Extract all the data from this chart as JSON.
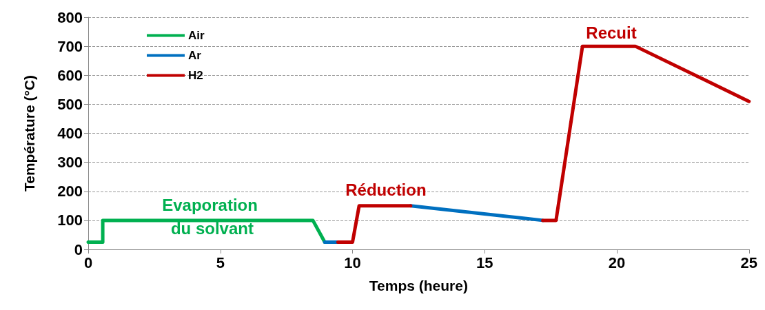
{
  "chart_data": {
    "type": "line",
    "xlabel": "Temps (heure)",
    "ylabel": "Température (°C)",
    "xlim": [
      0,
      25
    ],
    "xticks": [
      0,
      5,
      10,
      15,
      20,
      25
    ],
    "ylim": [
      0,
      800
    ],
    "yticks": [
      0,
      100,
      200,
      300,
      400,
      500,
      600,
      700,
      800
    ],
    "grid": "y",
    "legend": "top left",
    "marker": "none",
    "line_style": "solid",
    "series": [
      {
        "name": "Air",
        "color": "#00b050",
        "x": [
          0,
          0.55,
          0.55,
          8.5,
          8.95
        ],
        "values": [
          25,
          25,
          100,
          100,
          25
        ]
      },
      {
        "name": "Ar",
        "color": "#0070c0",
        "x": [
          8.95,
          9.45,
          null,
          12.2,
          17.2
        ],
        "values": [
          25,
          25,
          null,
          150,
          100
        ]
      },
      {
        "name": "H2",
        "color": "#c00000",
        "x": [
          9.45,
          10.0,
          10.25,
          12.2,
          null,
          17.2,
          17.7,
          18.7,
          20.7,
          25
        ],
        "values": [
          25,
          25,
          150,
          150,
          null,
          100,
          100,
          700,
          700,
          510
        ]
      }
    ],
    "annotations": [
      "Evaporation du solvant",
      "Réduction",
      "Recuit"
    ]
  }
}
